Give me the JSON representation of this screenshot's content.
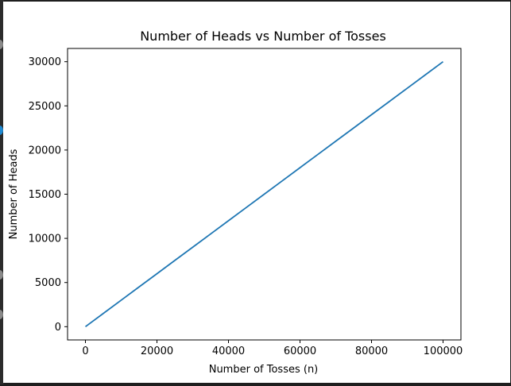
{
  "chart_data": {
    "type": "line",
    "title": "Number of Heads vs Number of Tosses",
    "xlabel": "Number of Tosses (n)",
    "ylabel": "Number of Heads",
    "xlim": [
      -5000,
      105000
    ],
    "ylim": [
      -1500,
      31500
    ],
    "xticks": [
      {
        "value": 0,
        "label": "0"
      },
      {
        "value": 20000,
        "label": "20000"
      },
      {
        "value": 40000,
        "label": "40000"
      },
      {
        "value": 60000,
        "label": "60000"
      },
      {
        "value": 80000,
        "label": "80000"
      },
      {
        "value": 100000,
        "label": "100000"
      }
    ],
    "yticks": [
      {
        "value": 0,
        "label": "0"
      },
      {
        "value": 5000,
        "label": "5000"
      },
      {
        "value": 10000,
        "label": "10000"
      },
      {
        "value": 15000,
        "label": "15000"
      },
      {
        "value": 20000,
        "label": "20000"
      },
      {
        "value": 25000,
        "label": "25000"
      },
      {
        "value": 30000,
        "label": "30000"
      }
    ],
    "grid": false,
    "series": [
      {
        "color": "#1f77b4",
        "x": [
          0,
          5000,
          10000,
          15000,
          20000,
          25000,
          30000,
          35000,
          40000,
          45000,
          50000,
          55000,
          60000,
          65000,
          70000,
          75000,
          80000,
          85000,
          90000,
          95000,
          100000
        ],
        "y": [
          0,
          1500,
          3000,
          4500,
          6000,
          7500,
          9000,
          10500,
          12000,
          13500,
          15000,
          16500,
          18000,
          19500,
          21000,
          22500,
          24000,
          25500,
          27000,
          28500,
          30000
        ]
      }
    ]
  }
}
